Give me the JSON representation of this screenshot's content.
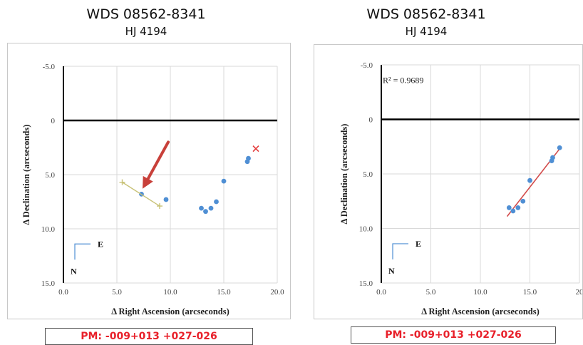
{
  "colors": {
    "point": "#4f8fd4",
    "candidate_x": "#e43b3b",
    "arrow": "#c8403a",
    "proper_motion_line": "#c8c277",
    "fit_line": "#d24b4b",
    "pm_text": "#e8202a"
  },
  "chart_data": [
    {
      "type": "scatter",
      "title": "WDS 08562-8341",
      "subtitle": "HJ 4194",
      "xlabel": "Δ Right Ascension (arcseconds)",
      "ylabel": "Δ Declination (arcseconds)",
      "xlim": [
        0,
        20
      ],
      "ylim": [
        15,
        -5
      ],
      "y_inverted": true,
      "x_tick_labels": [
        "0.0",
        "5.0",
        "10.0",
        "15.0",
        "20.0"
      ],
      "y_tick_labels": [
        "-5.0",
        "0",
        "5.0",
        "10.0",
        "15.0"
      ],
      "grid": true,
      "zero_line": "y=0",
      "orientation": {
        "east_label": "E",
        "north_label": "N"
      },
      "series": [
        {
          "role": "measurements",
          "points": [
            [
              7.3,
              6.8
            ],
            [
              9.6,
              7.3
            ],
            [
              12.9,
              8.1
            ],
            [
              13.3,
              8.4
            ],
            [
              13.8,
              8.1
            ],
            [
              14.3,
              7.5
            ],
            [
              15.0,
              5.6
            ],
            [
              17.2,
              3.8
            ],
            [
              17.3,
              3.5
            ]
          ]
        },
        {
          "role": "predicted-position",
          "marker": "x",
          "points": [
            [
              18.0,
              2.6
            ]
          ]
        },
        {
          "role": "proper-motion-line",
          "marker": "+",
          "points": [
            [
              5.5,
              5.7
            ],
            [
              9.0,
              7.9
            ]
          ]
        }
      ],
      "annotation_arrow": {
        "from": [
          9.8,
          2.0
        ],
        "to": [
          7.4,
          6.3
        ]
      },
      "footer": "PM:  -009+013 +027-026"
    },
    {
      "type": "scatter",
      "title": "WDS 08562-8341",
      "subtitle": "HJ 4194",
      "xlabel": "Δ Right Ascension (arcseconds)",
      "ylabel": "Δ Declination (arcseconds)",
      "xlim": [
        0,
        20
      ],
      "ylim": [
        15,
        -5
      ],
      "y_inverted": true,
      "x_tick_labels": [
        "0.0",
        "5.0",
        "10.0",
        "15.0",
        "20"
      ],
      "y_tick_labels": [
        "-5.0",
        "0",
        "5.0",
        "10.0",
        "15.0"
      ],
      "grid": true,
      "zero_line": "y=0",
      "orientation": {
        "east_label": "E",
        "north_label": "N"
      },
      "r_squared_label": "R² = 0.9689",
      "series": [
        {
          "role": "measurements",
          "points": [
            [
              12.9,
              8.1
            ],
            [
              13.3,
              8.4
            ],
            [
              13.8,
              8.1
            ],
            [
              14.3,
              7.5
            ],
            [
              15.0,
              5.6
            ],
            [
              17.2,
              3.8
            ],
            [
              17.3,
              3.5
            ],
            [
              18.0,
              2.6
            ]
          ]
        }
      ],
      "trendline": {
        "points": [
          [
            12.7,
            8.9
          ],
          [
            18.0,
            2.7
          ]
        ]
      },
      "footer": "PM:  -009+013 +027-026"
    }
  ]
}
